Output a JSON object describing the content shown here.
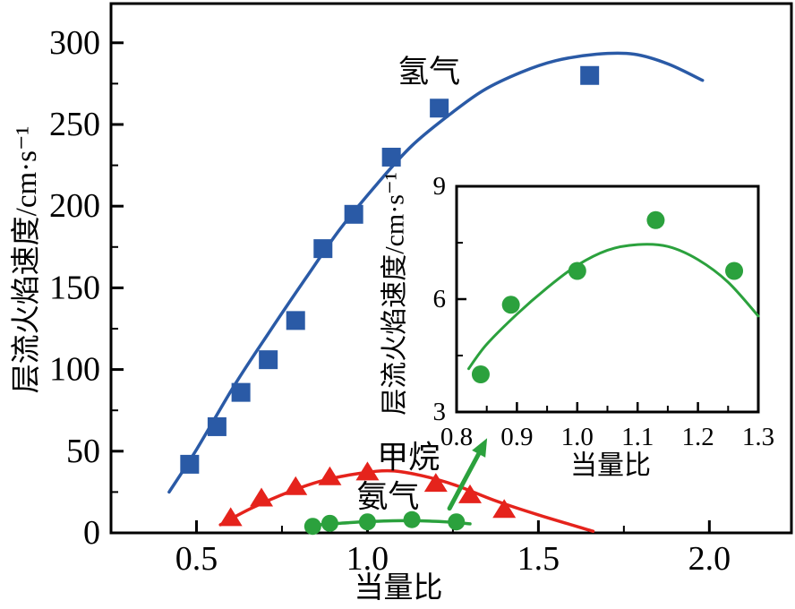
{
  "colors": {
    "hydrogen": "#2a5aa6",
    "methane": "#e5231c",
    "ammonia": "#2ba13d",
    "arrow": "#2ba13d",
    "axis": "#000000",
    "background": "#ffffff",
    "text": "#000000"
  },
  "chart_data": [
    {
      "id": "main",
      "type": "scatter",
      "title": "",
      "xlabel": "当量比",
      "ylabel": "层流火焰速度/cm·s⁻¹",
      "xlim": [
        0.25,
        2.24
      ],
      "ylim": [
        0,
        324
      ],
      "grid": false,
      "legend": "inline-labels",
      "x_ticks": {
        "major": [
          0.5,
          1.0,
          1.5,
          2.0
        ],
        "major_labels": [
          "0.5",
          "1.0",
          "1.5",
          "2.0"
        ],
        "minor": [
          0.75,
          1.25,
          1.75
        ]
      },
      "y_ticks": {
        "major": [
          0,
          50,
          100,
          150,
          200,
          250,
          300
        ],
        "major_labels": [
          "0",
          "50",
          "100",
          "150",
          "200",
          "250",
          "300"
        ],
        "minor": [
          25,
          75,
          125,
          175,
          225,
          275
        ]
      },
      "series": [
        {
          "name": "氢气",
          "name_en": "hydrogen",
          "color": "#2a5aa6",
          "marker": "square",
          "points": [
            [
              0.48,
              42
            ],
            [
              0.56,
              65
            ],
            [
              0.63,
              86
            ],
            [
              0.71,
              106
            ],
            [
              0.79,
              130
            ],
            [
              0.87,
              174
            ],
            [
              0.96,
              195
            ],
            [
              1.07,
              230
            ],
            [
              1.21,
              260
            ],
            [
              1.65,
              280
            ]
          ],
          "fit_curve": [
            [
              0.42,
              25
            ],
            [
              0.5,
              51
            ],
            [
              0.61,
              90
            ],
            [
              0.71,
              122
            ],
            [
              0.82,
              156
            ],
            [
              0.92,
              186
            ],
            [
              1.03,
              214
            ],
            [
              1.13,
              237
            ],
            [
              1.24,
              256
            ],
            [
              1.34,
              271
            ],
            [
              1.45,
              282
            ],
            [
              1.55,
              289
            ],
            [
              1.67,
              293
            ],
            [
              1.78,
              293
            ],
            [
              1.88,
              287
            ],
            [
              1.98,
              277
            ]
          ],
          "label_pos": [
            1.18,
            282
          ]
        },
        {
          "name": "甲烷",
          "name_en": "methane",
          "color": "#e5231c",
          "marker": "triangle",
          "points": [
            [
              0.6,
              9
            ],
            [
              0.69,
              21
            ],
            [
              0.79,
              28
            ],
            [
              0.89,
              34
            ],
            [
              1.0,
              37
            ],
            [
              1.2,
              30
            ],
            [
              1.3,
              23
            ],
            [
              1.4,
              14
            ]
          ],
          "fit_curve": [
            [
              0.57,
              5
            ],
            [
              0.66,
              15
            ],
            [
              0.77,
              25
            ],
            [
              0.87,
              32
            ],
            [
              0.98,
              36.5
            ],
            [
              1.07,
              38
            ],
            [
              1.16,
              35
            ],
            [
              1.26,
              29
            ],
            [
              1.37,
              20
            ],
            [
              1.5,
              11
            ],
            [
              1.66,
              1
            ]
          ],
          "label_pos": [
            1.12,
            46
          ]
        },
        {
          "name": "氨气",
          "name_en": "ammonia",
          "color": "#2ba13d",
          "marker": "circle",
          "points": [
            [
              0.84,
              4.0
            ],
            [
              0.89,
              5.85
            ],
            [
              1.0,
              6.75
            ],
            [
              1.13,
              8.1
            ],
            [
              1.26,
              6.75
            ]
          ],
          "fit_curve": [
            [
              0.82,
              4.15
            ],
            [
              0.85,
              4.8
            ],
            [
              0.9,
              5.6
            ],
            [
              0.95,
              6.3
            ],
            [
              1.0,
              6.9
            ],
            [
              1.05,
              7.3
            ],
            [
              1.1,
              7.45
            ],
            [
              1.15,
              7.4
            ],
            [
              1.2,
              7.05
            ],
            [
              1.25,
              6.45
            ],
            [
              1.3,
              5.55
            ]
          ],
          "label_pos": [
            1.06,
            22
          ]
        }
      ]
    },
    {
      "id": "inset",
      "type": "scatter",
      "title": "",
      "xlabel": "当量比",
      "ylabel": "层流火焰速度/cm·s⁻¹",
      "xlim": [
        0.8,
        1.3
      ],
      "ylim": [
        3,
        9
      ],
      "grid": false,
      "legend": "none",
      "x_ticks": {
        "major": [
          0.8,
          0.9,
          1.0,
          1.1,
          1.2,
          1.3
        ],
        "major_labels": [
          "0.8",
          "0.9",
          "1.0",
          "1.1",
          "1.2",
          "1.3"
        ],
        "minor": [
          0.85,
          0.95,
          1.05,
          1.15,
          1.25
        ]
      },
      "y_ticks": {
        "major": [
          3,
          6,
          9
        ],
        "major_labels": [
          "3",
          "6",
          "9"
        ],
        "minor": [
          4.5,
          7.5
        ]
      },
      "series": [
        {
          "name": "氨气",
          "name_en": "ammonia",
          "color": "#2ba13d",
          "marker": "circle",
          "points": [
            [
              0.84,
              4.0
            ],
            [
              0.89,
              5.85
            ],
            [
              1.0,
              6.75
            ],
            [
              1.13,
              8.1
            ],
            [
              1.26,
              6.75
            ]
          ],
          "fit_curve": [
            [
              0.82,
              4.15
            ],
            [
              0.85,
              4.8
            ],
            [
              0.9,
              5.6
            ],
            [
              0.95,
              6.3
            ],
            [
              1.0,
              6.9
            ],
            [
              1.05,
              7.3
            ],
            [
              1.1,
              7.45
            ],
            [
              1.15,
              7.4
            ],
            [
              1.2,
              7.05
            ],
            [
              1.25,
              6.45
            ],
            [
              1.3,
              5.55
            ]
          ],
          "label_pos": null
        }
      ]
    }
  ],
  "annotation": {
    "arrow": {
      "from": [
        1.24,
        15
      ],
      "to": [
        1.35,
        58
      ],
      "color": "#2ba13d"
    }
  }
}
